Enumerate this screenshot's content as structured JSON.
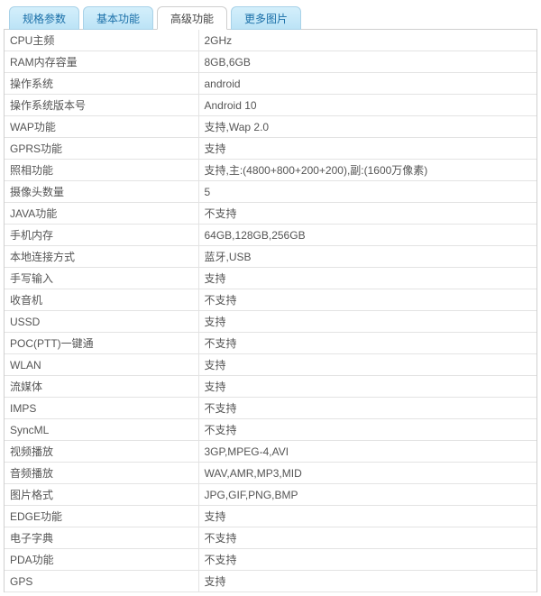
{
  "tabs": [
    {
      "label": "规格参数",
      "active": false
    },
    {
      "label": "基本功能",
      "active": false
    },
    {
      "label": "高级功能",
      "active": true
    },
    {
      "label": "更多图片",
      "active": false
    }
  ],
  "rows": [
    {
      "k": "CPU主频",
      "v": "2GHz"
    },
    {
      "k": "RAM内存容量",
      "v": "8GB,6GB"
    },
    {
      "k": "操作系统",
      "v": "android"
    },
    {
      "k": "操作系统版本号",
      "v": "Android 10"
    },
    {
      "k": "WAP功能",
      "v": "支持,Wap 2.0"
    },
    {
      "k": "GPRS功能",
      "v": "支持"
    },
    {
      "k": "照相功能",
      "v": "支持,主:(4800+800+200+200),副:(1600万像素)"
    },
    {
      "k": "摄像头数量",
      "v": "5"
    },
    {
      "k": "JAVA功能",
      "v": "不支持"
    },
    {
      "k": "手机内存",
      "v": "64GB,128GB,256GB"
    },
    {
      "k": "本地连接方式",
      "v": "蓝牙,USB"
    },
    {
      "k": "手写输入",
      "v": "支持"
    },
    {
      "k": "收音机",
      "v": "不支持"
    },
    {
      "k": "USSD",
      "v": "支持"
    },
    {
      "k": "POC(PTT)一键通",
      "v": "不支持"
    },
    {
      "k": "WLAN",
      "v": "支持"
    },
    {
      "k": "流媒体",
      "v": "支持"
    },
    {
      "k": "IMPS",
      "v": "不支持"
    },
    {
      "k": "SyncML",
      "v": "不支持"
    },
    {
      "k": "视频播放",
      "v": "3GP,MPEG-4,AVI"
    },
    {
      "k": "音频播放",
      "v": "WAV,AMR,MP3,MID"
    },
    {
      "k": "图片格式",
      "v": "JPG,GIF,PNG,BMP"
    },
    {
      "k": "EDGE功能",
      "v": "支持"
    },
    {
      "k": "电子字典",
      "v": "不支持"
    },
    {
      "k": "PDA功能",
      "v": "不支持"
    },
    {
      "k": "GPS",
      "v": "支持"
    }
  ]
}
